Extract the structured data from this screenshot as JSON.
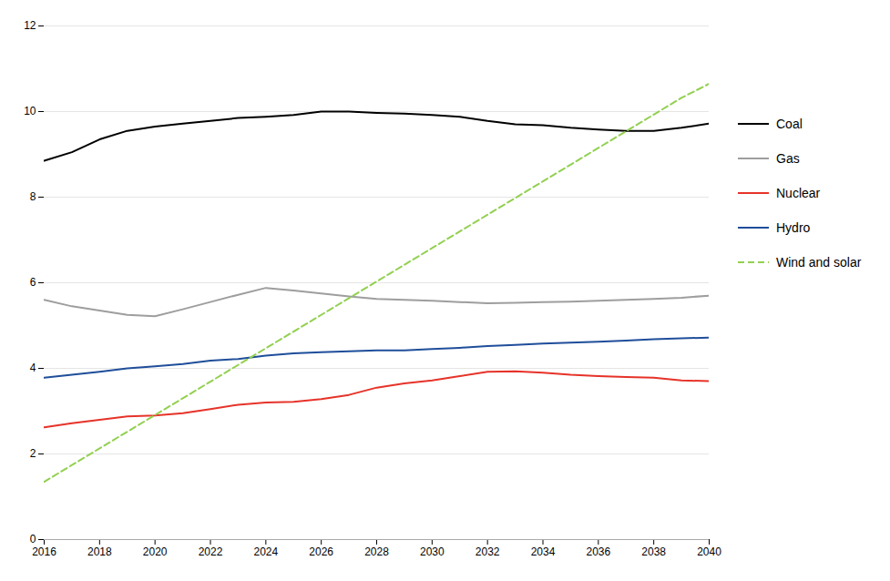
{
  "chart_data": {
    "type": "line",
    "x": [
      2016,
      2017,
      2018,
      2019,
      2020,
      2021,
      2022,
      2023,
      2024,
      2025,
      2026,
      2027,
      2028,
      2029,
      2030,
      2031,
      2032,
      2033,
      2034,
      2035,
      2036,
      2037,
      2038,
      2039,
      2040
    ],
    "series": [
      {
        "name": "Coal",
        "color": "#000000",
        "line_style": "solid",
        "values": [
          8.85,
          9.05,
          9.35,
          9.55,
          9.65,
          9.72,
          9.78,
          9.85,
          9.88,
          9.92,
          10.0,
          10.0,
          9.97,
          9.95,
          9.92,
          9.88,
          9.78,
          9.7,
          9.68,
          9.62,
          9.58,
          9.55,
          9.55,
          9.62,
          9.72
        ]
      },
      {
        "name": "Gas",
        "color": "#9e9e9e",
        "line_style": "solid",
        "values": [
          5.6,
          5.45,
          5.35,
          5.25,
          5.22,
          5.38,
          5.55,
          5.72,
          5.88,
          5.82,
          5.75,
          5.68,
          5.62,
          5.6,
          5.58,
          5.55,
          5.52,
          5.53,
          5.55,
          5.56,
          5.58,
          5.6,
          5.62,
          5.65,
          5.7
        ]
      },
      {
        "name": "Nuclear",
        "color": "#e63329",
        "line_style": "solid",
        "values": [
          2.62,
          2.72,
          2.8,
          2.88,
          2.9,
          2.95,
          3.05,
          3.15,
          3.2,
          3.22,
          3.28,
          3.38,
          3.55,
          3.65,
          3.72,
          3.82,
          3.92,
          3.93,
          3.9,
          3.85,
          3.82,
          3.8,
          3.78,
          3.72,
          3.7
        ]
      },
      {
        "name": "Hydro",
        "color": "#1f4e9a",
        "line_style": "solid",
        "values": [
          3.78,
          3.85,
          3.92,
          4.0,
          4.05,
          4.1,
          4.18,
          4.22,
          4.3,
          4.35,
          4.38,
          4.4,
          4.42,
          4.42,
          4.45,
          4.48,
          4.52,
          4.55,
          4.58,
          4.6,
          4.62,
          4.65,
          4.68,
          4.7,
          4.72
        ]
      },
      {
        "name": "Wind and solar",
        "color": "#92d050",
        "line_style": "dashed",
        "values": [
          1.35,
          1.74,
          2.13,
          2.52,
          2.91,
          3.3,
          3.69,
          4.08,
          4.47,
          4.86,
          5.25,
          5.64,
          6.03,
          6.42,
          6.81,
          7.2,
          7.59,
          7.98,
          8.37,
          8.76,
          9.15,
          9.54,
          9.93,
          10.32,
          10.65
        ]
      }
    ],
    "xlim": [
      2016,
      2040
    ],
    "xticks": [
      2016,
      2018,
      2020,
      2022,
      2024,
      2026,
      2028,
      2030,
      2032,
      2034,
      2036,
      2038,
      2040
    ],
    "ylim": [
      0,
      12
    ],
    "yticks": [
      0,
      2,
      4,
      6,
      8,
      10,
      12
    ],
    "grid": true,
    "legend": "right"
  }
}
